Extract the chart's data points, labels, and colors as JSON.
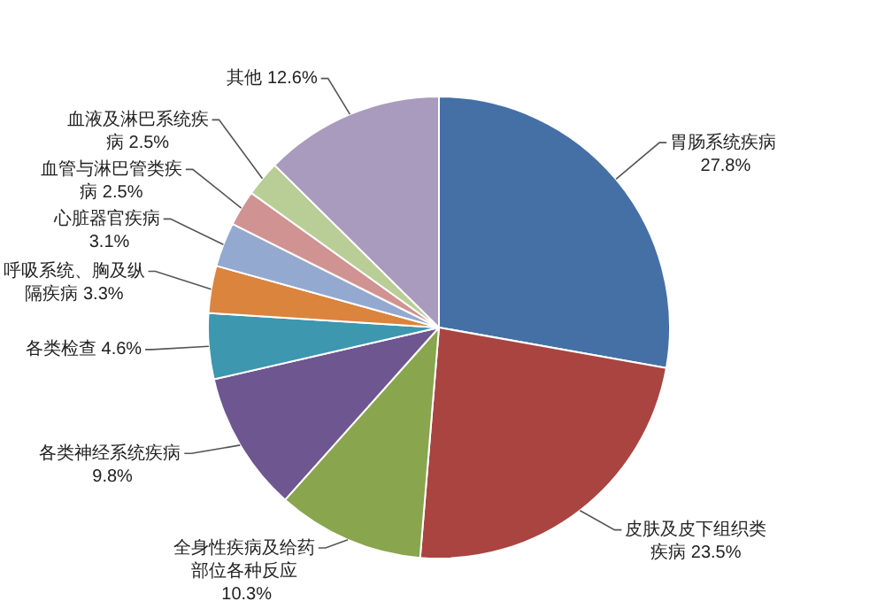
{
  "chart_data": {
    "type": "pie",
    "categories": [
      "胃肠系统疾病",
      "皮肤及皮下组织类疾病",
      "全身性疾病及给药部位各种反应",
      "各类神经系统疾病",
      "各类检查",
      "呼吸系统、胸及纵隔疾病",
      "心脏器官疾病",
      "血管与淋巴管类疾病",
      "血液及淋巴系统疾病",
      "其他"
    ],
    "values": [
      27.8,
      23.5,
      10.3,
      9.8,
      4.6,
      3.3,
      3.1,
      2.5,
      2.5,
      12.6
    ],
    "colors": [
      "#4470a6",
      "#a94441",
      "#89a54e",
      "#6e5690",
      "#3d97ae",
      "#db843d",
      "#93a9d0",
      "#d09392",
      "#b9cd96",
      "#a99bbd"
    ],
    "value_labels": [
      "27.8%",
      "23.5%",
      "10.3%",
      "9.8%",
      "4.6%",
      "3.3%",
      "3.1%",
      "2.5%",
      "2.5%",
      "12.6%"
    ],
    "legend": false
  }
}
